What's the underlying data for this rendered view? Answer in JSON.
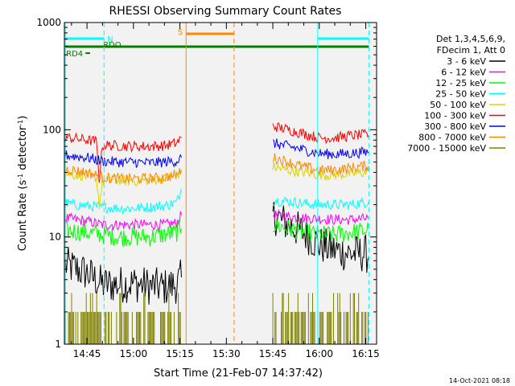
{
  "chart_data": {
    "type": "line",
    "title": "RHESSI Observing Summary Count Rates",
    "xlabel": "Start Time (21-Feb-07 14:37:42)",
    "ylabel_main": "Count Rate (s",
    "ylabel_sup1": "-1",
    "ylabel_mid": " detector",
    "ylabel_sup2": "-1",
    "ylabel_end": ")",
    "yscale": "log",
    "xlim_minutes": [
      37.7,
      138.5
    ],
    "ylim": [
      1,
      1000
    ],
    "x_ticks": [
      {
        "label": "14:45",
        "minute": 45
      },
      {
        "label": "15:00",
        "minute": 60
      },
      {
        "label": "15:15",
        "minute": 75
      },
      {
        "label": "15:30",
        "minute": 90
      },
      {
        "label": "15:45",
        "minute": 105
      },
      {
        "label": "16:00",
        "minute": 120
      },
      {
        "label": "16:15",
        "minute": 135
      }
    ],
    "y_ticks": [
      {
        "label": "1",
        "value": 1
      },
      {
        "label": "10",
        "value": 10
      },
      {
        "label": "100",
        "value": 100
      },
      {
        "label": "1000",
        "value": 1000
      }
    ],
    "legend": {
      "placement": "right",
      "header": [
        "Det 1,3,4,5,6,9,",
        "FDecim 1, Att 0"
      ]
    },
    "series": [
      {
        "name": "3 - 6 keV",
        "color": "#000000",
        "segments": [
          {
            "x": [
              38,
              45,
              50,
              55,
              60,
              65,
              70,
              74,
              75.5
            ],
            "y": [
              5.5,
              4.6,
              3.6,
              3.6,
              3.7,
              3.5,
              3.4,
              3.6,
              4.2
            ]
          },
          {
            "x": [
              105,
              110,
              115,
              120,
              125,
              130,
              135,
              136
            ],
            "y": [
              16,
              13,
              11,
              8.5,
              7.5,
              7,
              7,
              6.5
            ]
          }
        ]
      },
      {
        "name": "6 - 12 keV",
        "color": "#ff00ff",
        "segments": [
          {
            "x": [
              38,
              45,
              50,
              55,
              60,
              65,
              70,
              74,
              75.5
            ],
            "y": [
              15,
              14,
              13,
              13,
              13,
              13,
              13,
              13.5,
              16
            ]
          },
          {
            "x": [
              105,
              110,
              115,
              120,
              125,
              130,
              135,
              136
            ],
            "y": [
              16,
              15.5,
              15,
              14.8,
              14.5,
              14.5,
              14.8,
              15
            ]
          }
        ]
      },
      {
        "name": "12 - 25 keV",
        "color": "#00ff00",
        "segments": [
          {
            "x": [
              38,
              45,
              50,
              55,
              60,
              65,
              70,
              74,
              75.5
            ],
            "y": [
              11.5,
              11,
              10.5,
              10,
              10,
              10,
              10.5,
              11,
              12
            ]
          },
          {
            "x": [
              105,
              110,
              115,
              120,
              125,
              130,
              135,
              136
            ],
            "y": [
              13,
              12,
              11,
              10.5,
              10.5,
              11,
              11.5,
              12
            ]
          }
        ]
      },
      {
        "name": "25 - 50 keV",
        "color": "#00ffff",
        "segments": [
          {
            "x": [
              38,
              45,
              50,
              55,
              60,
              65,
              70,
              74,
              75.5
            ],
            "y": [
              20.5,
              19.5,
              19,
              18.5,
              18.5,
              19,
              19.5,
              21,
              28
            ]
          },
          {
            "x": [
              105,
              110,
              115,
              120,
              125,
              130,
              135,
              136
            ],
            "y": [
              22,
              21.5,
              20.5,
              20,
              20,
              20,
              21,
              21.5
            ]
          }
        ]
      },
      {
        "name": "50 - 100 keV",
        "color": "#e0d000",
        "segments": [
          {
            "x": [
              38,
              45,
              48,
              49,
              50,
              55,
              60,
              65,
              70,
              74,
              75.5
            ],
            "y": [
              39,
              37,
              36,
              20,
              33,
              34,
              33,
              34,
              35,
              37,
              42
            ]
          },
          {
            "x": [
              105,
              110,
              115,
              120,
              125,
              130,
              135,
              136
            ],
            "y": [
              45,
              42,
              40,
              38,
              38,
              39,
              40,
              41
            ]
          }
        ]
      },
      {
        "name": "100 - 300 keV",
        "color": "#ff0000",
        "segments": [
          {
            "x": [
              38,
              45,
              48,
              49,
              50,
              55,
              60,
              65,
              70,
              74,
              75.5
            ],
            "y": [
              85,
              80,
              78,
              35,
              72,
              71,
              70,
              70,
              71,
              75,
              85
            ]
          },
          {
            "x": [
              105,
              110,
              115,
              120,
              125,
              130,
              135,
              136
            ],
            "y": [
              108,
              100,
              92,
              84,
              84,
              88,
              90,
              89
            ]
          }
        ]
      },
      {
        "name": "300 - 800 keV",
        "color": "#0000ff",
        "segments": [
          {
            "x": [
              38,
              45,
              50,
              55,
              60,
              65,
              70,
              74,
              75.5
            ],
            "y": [
              58,
              55,
              51,
              50,
              50,
              49,
              50,
              51,
              55
            ]
          },
          {
            "x": [
              105,
              110,
              115,
              120,
              125,
              130,
              135,
              136
            ],
            "y": [
              75,
              70,
              65,
              60,
              59,
              60,
              62,
              62
            ]
          }
        ]
      },
      {
        "name": "800 - 7000 keV",
        "color": "#ff8800",
        "segments": [
          {
            "x": [
              38,
              45,
              50,
              55,
              60,
              65,
              70,
              74,
              75.5
            ],
            "y": [
              43,
              40,
              36,
              35,
              35,
              35,
              36,
              38,
              42
            ]
          },
          {
            "x": [
              105,
              110,
              115,
              120,
              125,
              130,
              135,
              136
            ],
            "y": [
              55,
              50,
              45,
              42,
              42,
              44,
              46,
              46
            ]
          }
        ]
      },
      {
        "name": "7000 - 15000 keV",
        "color": "#808000",
        "segments": [
          {
            "x": [
              38,
              75.5
            ],
            "y": [
              2,
              2
            ]
          },
          {
            "x": [
              105,
              136
            ],
            "y": [
              2,
              2
            ]
          }
        ]
      }
    ],
    "flag_bars": [
      {
        "label": "N",
        "color": "#00ffff",
        "x": [
          38,
          50.5
        ]
      },
      {
        "label": "",
        "color": "#00ffff",
        "x": [
          119.5,
          136
        ]
      },
      {
        "label": "S",
        "color": "#ff8800",
        "x": [
          77,
          92.5
        ]
      },
      {
        "label": "RDO",
        "color": "#008000",
        "x": [
          38,
          136
        ]
      },
      {
        "label": "RD4",
        "color": "#008000",
        "x": [
          44.5,
          46
        ]
      }
    ],
    "vertical_lines": [
      {
        "color": "#00ffff",
        "style": "solid",
        "x": 38
      },
      {
        "color": "#00ffff",
        "style": "dashed",
        "x": 50.5
      },
      {
        "color": "#ff8800",
        "style": "solid",
        "x": 77
      },
      {
        "color": "#ff8800",
        "style": "dashed",
        "x": 92.5
      },
      {
        "color": "#00ffff",
        "style": "solid",
        "x": 119.5
      },
      {
        "color": "#00ffff",
        "style": "dashed",
        "x": 136
      }
    ]
  },
  "footer": {
    "timestamp": "14-Oct-2021 08:18"
  }
}
